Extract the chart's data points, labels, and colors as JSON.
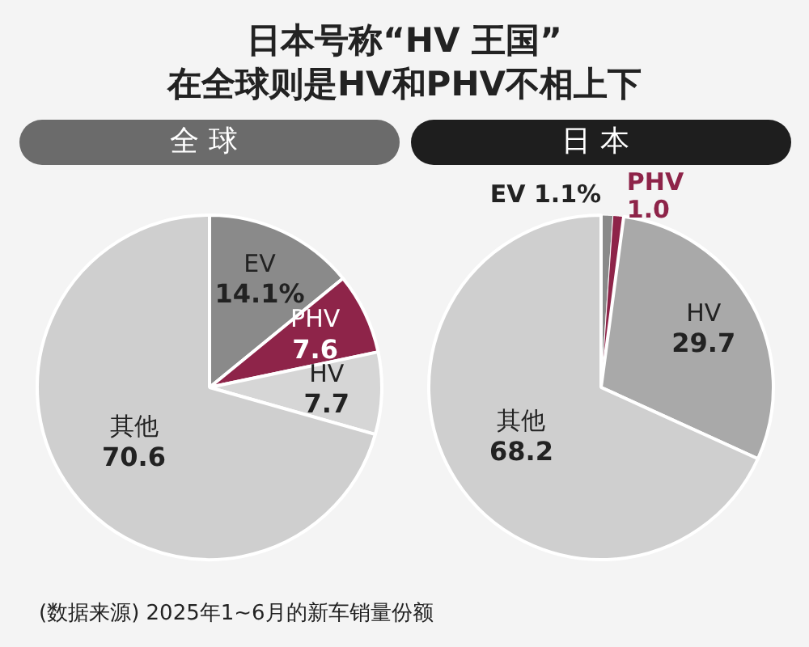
{
  "chart_data": [
    {
      "type": "pie",
      "title": "全球",
      "annotations": [
        "日本号称“HV 王国”",
        "在全球则是HV和PHV不相上下",
        "(数据来源) 2025年1~6月的新车销量份额"
      ],
      "categories": [
        "EV",
        "PHV",
        "HV",
        "其他"
      ],
      "values": [
        14.1,
        7.6,
        7.7,
        70.6
      ],
      "value_labels": [
        "14.1%",
        "7.6",
        "7.7",
        "70.6"
      ],
      "colors": [
        "#8a8a8a",
        "#8e2449",
        "#d6d6d6",
        "#cfcfcf"
      ]
    },
    {
      "type": "pie",
      "title": "日本",
      "categories": [
        "EV",
        "PHV",
        "HV",
        "其他"
      ],
      "values": [
        1.1,
        1.0,
        29.7,
        68.2
      ],
      "value_labels": [
        "1.1%",
        "1.0",
        "29.7",
        "68.2"
      ],
      "colors": [
        "#8a8a8a",
        "#8e2449",
        "#a9a9a9",
        "#cfcfcf"
      ]
    }
  ]
}
